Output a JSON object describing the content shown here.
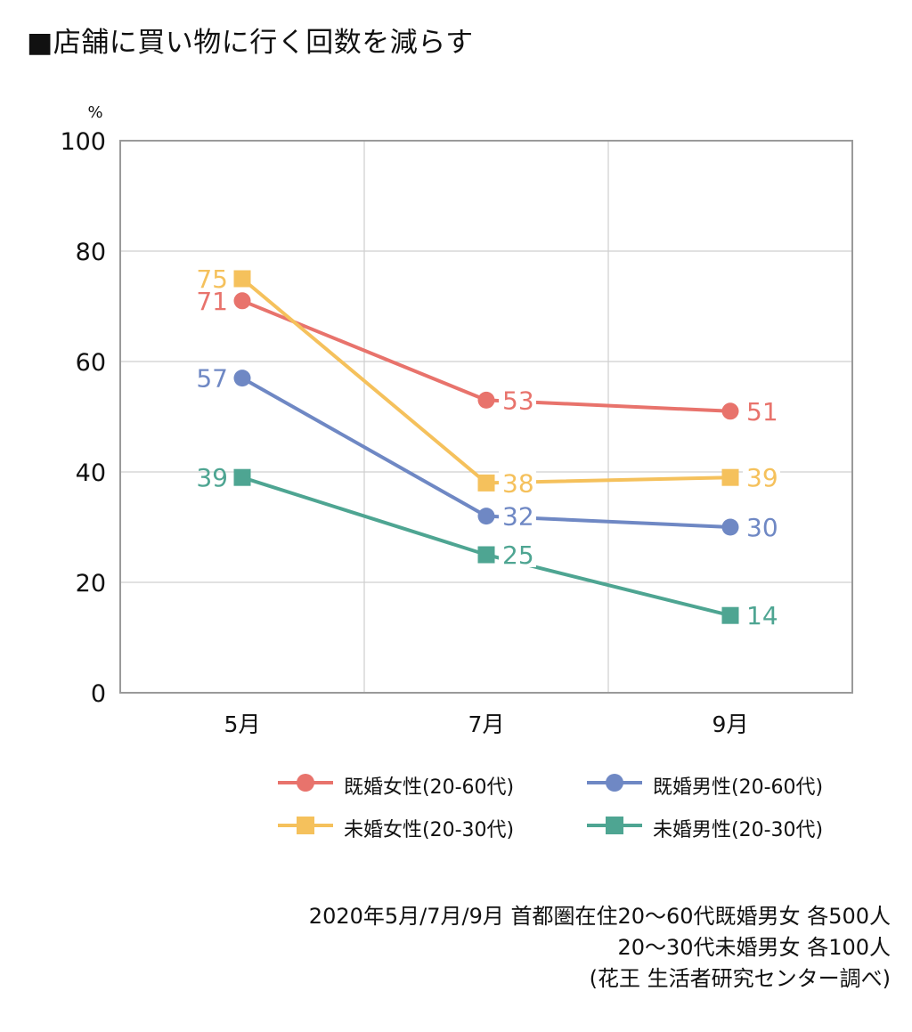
{
  "chart_data": {
    "type": "line",
    "title": "■店舗に買い物に行く回数を減らす",
    "unit": "%",
    "categories": [
      "5月",
      "7月",
      "9月"
    ],
    "ylim": [
      0,
      100
    ],
    "yticks": [
      "0",
      "20",
      "40",
      "60",
      "80",
      "100"
    ],
    "grid": true,
    "legend_position": "bottom",
    "series": [
      {
        "name": "既婚女性(20-60代)",
        "values": [
          71,
          53,
          51
        ],
        "color": "#e8736c",
        "marker": "circle"
      },
      {
        "name": "既婚男性(20-60代)",
        "values": [
          57,
          32,
          30
        ],
        "color": "#6f88c4",
        "marker": "circle"
      },
      {
        "name": "未婚女性(20-30代)",
        "values": [
          75,
          38,
          39
        ],
        "color": "#f5c15c",
        "marker": "square"
      },
      {
        "name": "未婚男性(20-30代)",
        "values": [
          39,
          25,
          14
        ],
        "color": "#4ea592",
        "marker": "square"
      }
    ]
  },
  "source_lines": [
    "2020年5月/7月/9月 首都圏在住20〜60代既婚男女 各500人",
    "20〜30代未婚男女 各100人",
    "(花王 生活者研究センター調べ)"
  ]
}
